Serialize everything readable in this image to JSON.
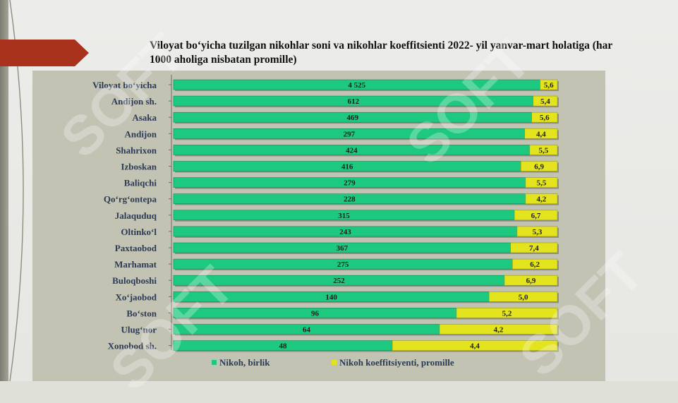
{
  "slide": {
    "title": "Viloyat bo‘yicha tuzilgan nikohlar soni va nikohlar koeffitsienti 2022- yil yanvar-mart holatiga (har 1000 aholiga nisbatan promille)",
    "watermark_text": "SOFT"
  },
  "colors": {
    "green": "#1dc97f",
    "yellow": "#e4e41e",
    "accent_red": "#a8321b",
    "panel": "#c3c3b4"
  },
  "chart_data": {
    "type": "bar",
    "orientation": "horizontal",
    "stacked": true,
    "categories": [
      "Viloyat bo‘yicha",
      "Andijon sh.",
      "Asaka",
      "Andijon",
      "Shahrixon",
      "Izboskan",
      "Baliqchi",
      "Qo‘rg‘ontepa",
      "Jalaquduq",
      "Oltinko‘l",
      "Paxtaobod",
      "Marhamat",
      "Buloqboshi",
      "Xo‘jaobod",
      "Bo‘ston",
      "Ulug‘nor",
      "Xonobod sh."
    ],
    "series": [
      {
        "name": "Nikoh, birlik",
        "color": "#1dc97f",
        "labels": [
          "4 525",
          "612",
          "469",
          "297",
          "424",
          "416",
          "279",
          "228",
          "315",
          "243",
          "367",
          "275",
          "252",
          "140",
          "96",
          "64",
          "48"
        ],
        "share": [
          0.955,
          0.937,
          0.933,
          0.915,
          0.928,
          0.905,
          0.917,
          0.917,
          0.888,
          0.895,
          0.878,
          0.883,
          0.862,
          0.822,
          0.737,
          0.693,
          0.57
        ]
      },
      {
        "name": "Nikoh koeffitsiyenti, promille",
        "color": "#e4e41e",
        "labels": [
          "5,6",
          "5,4",
          "5,6",
          "4,4",
          "5,5",
          "6,9",
          "5,5",
          "4,2",
          "6,7",
          "5,3",
          "7,4",
          "6,2",
          "6,9",
          "5,0",
          "5,2",
          "4,2",
          "4,4"
        ],
        "share": [
          0.045,
          0.063,
          0.067,
          0.085,
          0.072,
          0.095,
          0.083,
          0.083,
          0.112,
          0.105,
          0.122,
          0.117,
          0.138,
          0.178,
          0.263,
          0.307,
          0.43
        ]
      }
    ],
    "legend": {
      "position": "bottom",
      "items": [
        "Nikoh, birlik",
        "Nikoh koeffitsiyenti, promille"
      ]
    },
    "grid": false
  }
}
